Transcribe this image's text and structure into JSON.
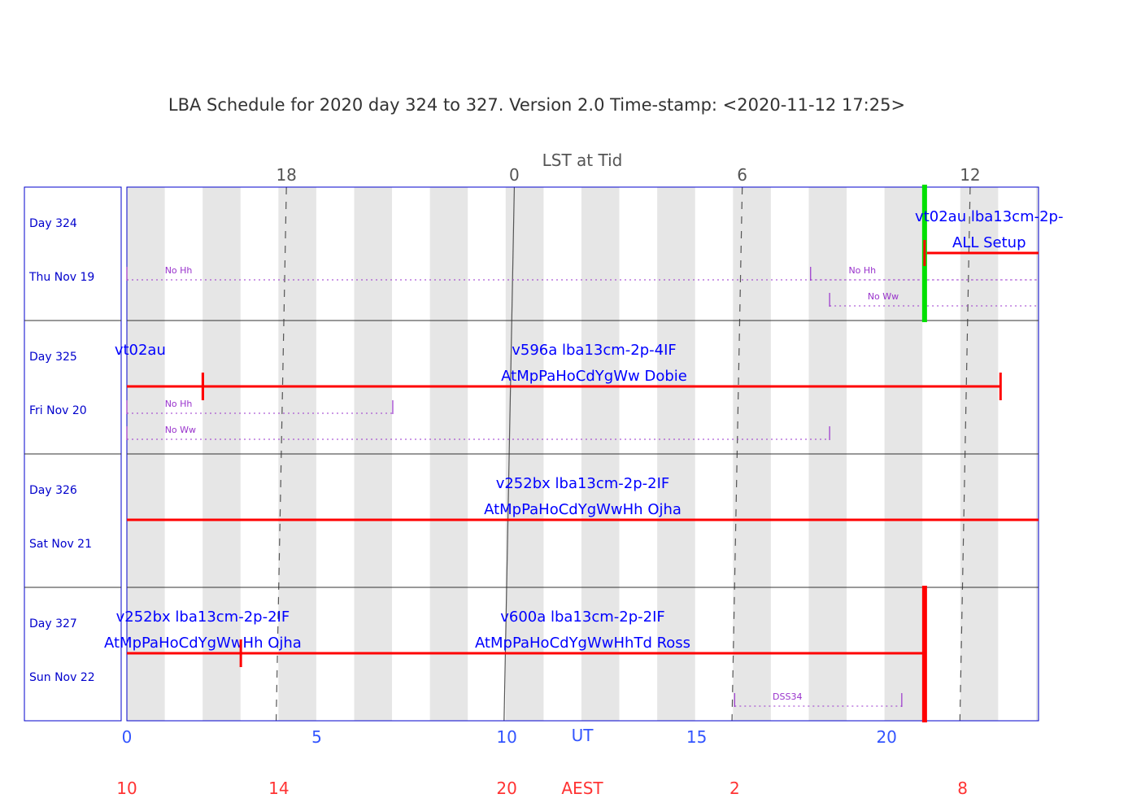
{
  "title": "LBA Schedule for 2020 day 324 to 327. Version 2.0 Time-stamp: <2020-11-12 17:25>",
  "chart_data": {
    "type": "schedule",
    "title": "LBA Schedule for 2020 day 324 to 327. Version 2.0 Time-stamp: <2020-11-12 17:25>",
    "top_axis_label": "LST at Tid",
    "lst_ticks": [
      {
        "label": "18",
        "ut": 4.2
      },
      {
        "label": "0",
        "ut": 10.2
      },
      {
        "label": "6",
        "ut": 16.2
      },
      {
        "label": "12",
        "ut": 22.2
      }
    ],
    "ut_axis_label": "UT",
    "ut_range": [
      0,
      24
    ],
    "ut_ticks": [
      0,
      5,
      10,
      15,
      20
    ],
    "aest_axis_label": "AEST",
    "aest_ticks": [
      {
        "label": "10",
        "ut": 0
      },
      {
        "label": "14",
        "ut": 4
      },
      {
        "label": "20",
        "ut": 10
      },
      {
        "label": "2",
        "ut": 16
      },
      {
        "label": "8",
        "ut": 22
      }
    ],
    "days": [
      {
        "day": "Day 324",
        "date": "Thu Nov 19"
      },
      {
        "day": "Day 325",
        "date": "Fri Nov 20"
      },
      {
        "day": "Day 326",
        "date": "Sat Nov 21"
      },
      {
        "day": "Day 327",
        "date": "Sun Nov 22"
      }
    ],
    "experiments": [
      {
        "row": 0,
        "line1": "vt02au lba13cm-2p-",
        "line2": "ALL Setup",
        "start": 21.0,
        "end": 24.0,
        "setup": 21.0,
        "label_ut": 22.7,
        "setup_color": "#00e000"
      },
      {
        "row": 1,
        "line1": "vt02au",
        "line2": "",
        "start": 0,
        "end": 2.0,
        "setup": null,
        "label_ut": 0.35
      },
      {
        "row": 1,
        "line1": "v596a lba13cm-2p-4IF",
        "line2": "AtMpPaHoCdYgWw Dobie",
        "start": 2.0,
        "end": 23.0,
        "setup": 2.0,
        "label_ut": 12.3
      },
      {
        "row": 2,
        "line1": "v252bx lba13cm-2p-2IF",
        "line2": "AtMpPaHoCdYgWwHh Ojha",
        "start": 0,
        "end": 24.0,
        "setup": null,
        "label_ut": 12.0
      },
      {
        "row": 3,
        "line1": "v252bx lba13cm-2p-2IF",
        "line2": "AtMpPaHoCdYgWwHh Ojha",
        "start": 0,
        "end": 3.0,
        "setup": null,
        "label_ut": 2.0
      },
      {
        "row": 3,
        "line1": "v600a lba13cm-2p-2IF",
        "line2": "AtMpPaHoCdYgWwHhTd Ross",
        "start": 3.0,
        "end": 21.0,
        "setup": 3.0,
        "label_ut": 12.0,
        "end_mark": true
      }
    ],
    "unavailable": [
      {
        "row": 0,
        "label": "No Hh",
        "start": 0,
        "end": 24,
        "sub": 0,
        "label_ut": 1.0
      },
      {
        "row": 0,
        "label": "No Hh",
        "start": 18.0,
        "end": 24,
        "sub": 0,
        "label_ut": 19.0
      },
      {
        "row": 0,
        "label": "No Ww",
        "start": 18.5,
        "end": 24,
        "sub": 1,
        "label_ut": 19.5
      },
      {
        "row": 1,
        "label": "No Hh",
        "start": 0,
        "end": 7.0,
        "sub": 0,
        "label_ut": 1.0
      },
      {
        "row": 1,
        "label": "No Ww",
        "start": 0,
        "end": 18.5,
        "sub": 1,
        "label_ut": 1.0
      },
      {
        "row": 3,
        "label": "DSS34",
        "start": 16.0,
        "end": 20.4,
        "sub": 1,
        "label_ut": 17.0
      }
    ],
    "colors": {
      "frame": "#0000cc",
      "experiment_text": "#0000ff",
      "bar": "#ff0000",
      "setup_marker": "#00e000",
      "unavailable": "#9933cc",
      "shade": "#e6e6e6",
      "lst_axis": "#555555",
      "aest_text": "#ff3333",
      "ut_text": "#3355ff"
    }
  }
}
